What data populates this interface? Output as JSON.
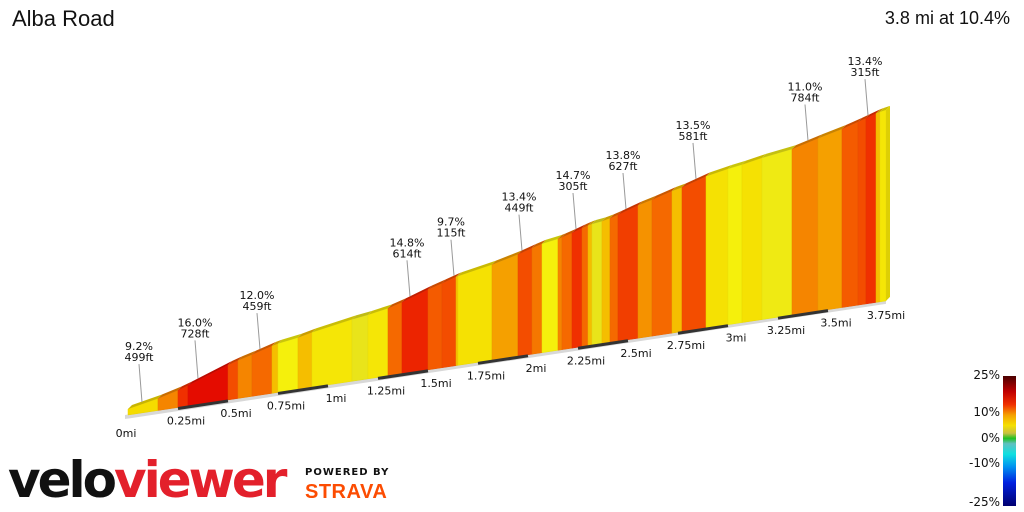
{
  "header": {
    "title": "Alba Road",
    "summary": "3.8 mi at 10.4%"
  },
  "chart_data": {
    "type": "area",
    "title": "Alba Road",
    "distance_mi": 3.8,
    "avg_grade_pct": 10.4,
    "xlabel": "",
    "ylabel": "",
    "x_ticks": [
      "0mi",
      "0.25mi",
      "0.5mi",
      "0.75mi",
      "1mi",
      "1.25mi",
      "1.5mi",
      "1.75mi",
      "2mi",
      "2.25mi",
      "2.5mi",
      "2.75mi",
      "3mi",
      "3.25mi",
      "3.5mi",
      "3.75mi"
    ],
    "segments_grade_pct": [
      [
        0,
        9
      ],
      [
        0.15,
        12
      ],
      [
        0.25,
        15
      ],
      [
        0.3,
        16.5
      ],
      [
        0.5,
        14
      ],
      [
        0.55,
        12
      ],
      [
        0.62,
        13
      ],
      [
        0.72,
        10
      ],
      [
        0.75,
        7
      ],
      [
        0.85,
        10
      ],
      [
        0.92,
        8
      ],
      [
        1.12,
        6
      ],
      [
        1.2,
        8
      ],
      [
        1.3,
        13
      ],
      [
        1.37,
        15.5
      ],
      [
        1.5,
        13.5
      ],
      [
        1.57,
        14
      ],
      [
        1.64,
        10
      ],
      [
        1.65,
        8.5
      ],
      [
        1.82,
        11
      ],
      [
        1.95,
        14
      ],
      [
        2.02,
        12.5
      ],
      [
        2.07,
        7
      ],
      [
        2.15,
        12
      ],
      [
        2.17,
        13
      ],
      [
        2.22,
        15
      ],
      [
        2.27,
        13
      ],
      [
        2.3,
        10
      ],
      [
        2.32,
        6
      ],
      [
        2.37,
        10
      ],
      [
        2.41,
        13
      ],
      [
        2.45,
        14.5
      ],
      [
        2.55,
        11.5
      ],
      [
        2.62,
        13
      ],
      [
        2.72,
        10
      ],
      [
        2.77,
        14
      ],
      [
        2.89,
        8.5
      ],
      [
        3.0,
        7
      ],
      [
        3.07,
        8.5
      ],
      [
        3.17,
        6.5
      ],
      [
        3.32,
        12
      ],
      [
        3.45,
        11
      ],
      [
        3.57,
        13.5
      ],
      [
        3.65,
        14
      ],
      [
        3.69,
        15
      ],
      [
        3.74,
        10
      ],
      [
        3.76,
        8
      ]
    ],
    "end_mi": 3.79,
    "annotations": [
      {
        "at_mi": 0.07,
        "grade": "9.2%",
        "length": "499ft"
      },
      {
        "at_mi": 0.35,
        "grade": "16.0%",
        "length": "728ft"
      },
      {
        "at_mi": 0.66,
        "grade": "12.0%",
        "length": "459ft"
      },
      {
        "at_mi": 1.41,
        "grade": "14.8%",
        "length": "614ft"
      },
      {
        "at_mi": 1.63,
        "grade": "9.7%",
        "length": "115ft"
      },
      {
        "at_mi": 1.97,
        "grade": "13.4%",
        "length": "449ft"
      },
      {
        "at_mi": 2.24,
        "grade": "14.7%",
        "length": "305ft"
      },
      {
        "at_mi": 2.49,
        "grade": "13.8%",
        "length": "627ft"
      },
      {
        "at_mi": 2.84,
        "grade": "13.5%",
        "length": "581ft"
      },
      {
        "at_mi": 3.4,
        "grade": "11.0%",
        "length": "784ft"
      },
      {
        "at_mi": 3.7,
        "grade": "13.4%",
        "length": "315ft"
      }
    ],
    "legend": {
      "labels": [
        "25%",
        "10%",
        "0%",
        "-10%",
        "-25%"
      ],
      "range": [
        -25,
        25
      ]
    }
  },
  "branding": {
    "velo": "velo",
    "viewer": "viewer",
    "powered_by": "POWERED BY",
    "strava": "STRAVA"
  }
}
